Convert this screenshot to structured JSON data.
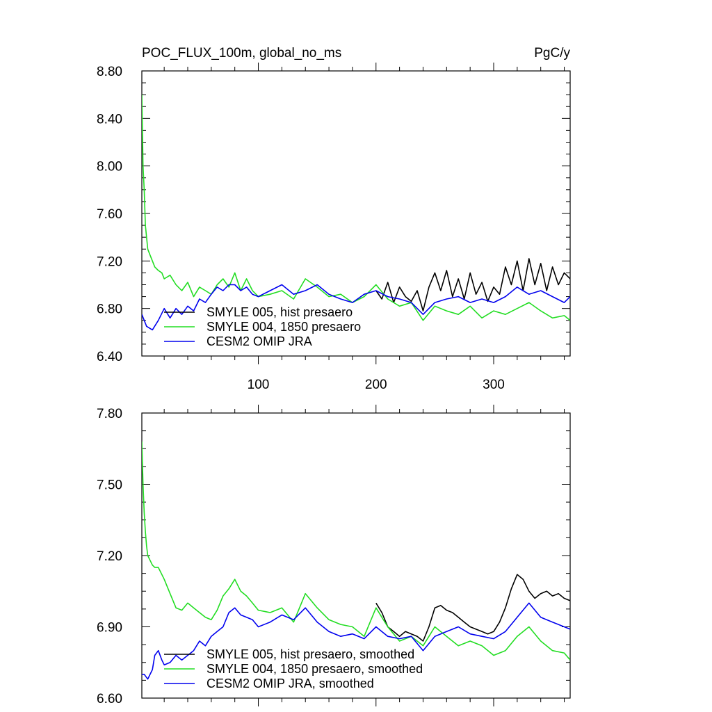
{
  "colors": {
    "black": "#000000",
    "green": "#22dd22",
    "blue": "#0000ee"
  },
  "chart_data": [
    {
      "type": "line",
      "title": "POC_FLUX_100m, global_no_ms",
      "units": "PgC/y",
      "xlim": [
        1,
        365
      ],
      "ylim": [
        6.4,
        8.8
      ],
      "x_ticks": [
        100,
        200,
        300
      ],
      "x_tick_labels": [
        "100",
        "200",
        "300"
      ],
      "y_ticks": [
        6.4,
        6.8,
        7.2,
        7.6,
        8.0,
        8.4,
        8.8
      ],
      "y_tick_labels": [
        "6.40",
        "6.80",
        "7.20",
        "7.60",
        "8.00",
        "8.40",
        "8.80"
      ],
      "legend": {
        "placement": "bottom-left"
      },
      "series": [
        {
          "name": "SMYLE 005, hist presaero",
          "color": "#000000",
          "x": [
            200,
            205,
            210,
            215,
            220,
            225,
            230,
            235,
            240,
            245,
            250,
            255,
            260,
            265,
            270,
            275,
            280,
            285,
            290,
            295,
            300,
            305,
            310,
            315,
            320,
            325,
            330,
            335,
            340,
            345,
            350,
            355,
            360,
            365
          ],
          "values": [
            6.95,
            6.88,
            7.02,
            6.85,
            6.98,
            6.9,
            6.86,
            6.95,
            6.78,
            6.98,
            7.1,
            6.95,
            7.12,
            6.9,
            7.05,
            6.88,
            7.1,
            6.92,
            7.02,
            6.86,
            6.98,
            6.92,
            7.15,
            7.0,
            7.2,
            6.95,
            7.22,
            7.0,
            7.18,
            6.95,
            7.15,
            7.0,
            7.1,
            7.05
          ]
        },
        {
          "name": "SMYLE 004, 1850 presaero",
          "color": "#22dd22",
          "x": [
            1,
            2,
            3,
            4,
            5,
            6,
            8,
            10,
            12,
            15,
            18,
            20,
            25,
            30,
            35,
            40,
            45,
            50,
            55,
            60,
            65,
            70,
            75,
            80,
            85,
            90,
            95,
            100,
            110,
            120,
            130,
            140,
            150,
            160,
            170,
            180,
            190,
            200,
            210,
            220,
            230,
            240,
            250,
            260,
            270,
            280,
            290,
            300,
            310,
            320,
            330,
            340,
            350,
            360,
            365
          ],
          "values": [
            8.6,
            8.0,
            7.8,
            7.5,
            7.4,
            7.3,
            7.25,
            7.2,
            7.15,
            7.12,
            7.1,
            7.05,
            7.08,
            7.0,
            6.95,
            7.02,
            6.9,
            6.98,
            6.95,
            6.92,
            7.0,
            7.05,
            6.98,
            7.1,
            6.95,
            7.05,
            6.95,
            6.9,
            6.92,
            6.95,
            6.88,
            7.05,
            6.98,
            6.9,
            6.92,
            6.85,
            6.9,
            7.0,
            6.88,
            6.82,
            6.85,
            6.7,
            6.82,
            6.78,
            6.75,
            6.82,
            6.72,
            6.78,
            6.75,
            6.8,
            6.85,
            6.78,
            6.72,
            6.74,
            6.7
          ]
        },
        {
          "name": "CESM2 OMIP JRA",
          "color": "#0000ee",
          "x": [
            1,
            5,
            10,
            15,
            20,
            25,
            30,
            35,
            40,
            45,
            50,
            55,
            60,
            65,
            70,
            75,
            80,
            85,
            90,
            95,
            100,
            110,
            120,
            130,
            140,
            150,
            160,
            170,
            180,
            190,
            200,
            210,
            220,
            230,
            240,
            250,
            260,
            270,
            280,
            290,
            300,
            310,
            320,
            330,
            340,
            350,
            360,
            365
          ],
          "values": [
            6.75,
            6.65,
            6.62,
            6.7,
            6.8,
            6.72,
            6.8,
            6.75,
            6.82,
            6.78,
            6.88,
            6.85,
            6.92,
            6.98,
            6.95,
            7.0,
            7.0,
            6.95,
            6.98,
            6.92,
            6.9,
            6.95,
            7.0,
            6.92,
            6.95,
            7.0,
            6.92,
            6.88,
            6.85,
            6.92,
            6.95,
            6.9,
            6.88,
            6.85,
            6.75,
            6.85,
            6.88,
            6.9,
            6.85,
            6.88,
            6.85,
            6.9,
            6.98,
            6.92,
            6.95,
            6.9,
            6.85,
            6.9
          ]
        }
      ]
    },
    {
      "type": "line",
      "xlim": [
        1,
        365
      ],
      "ylim": [
        6.6,
        7.8
      ],
      "x_ticks": [
        100,
        200,
        300
      ],
      "x_tick_labels": [],
      "y_ticks": [
        6.6,
        6.9,
        7.2,
        7.5,
        7.8
      ],
      "y_tick_labels": [
        "6.60",
        "6.90",
        "7.20",
        "7.50",
        "7.80"
      ],
      "legend": {
        "placement": "bottom-left"
      },
      "series": [
        {
          "name": "SMYLE 005, hist presaero, smoothed",
          "color": "#000000",
          "x": [
            200,
            205,
            210,
            215,
            220,
            225,
            230,
            235,
            240,
            245,
            250,
            255,
            260,
            265,
            270,
            275,
            280,
            285,
            290,
            295,
            300,
            305,
            310,
            315,
            320,
            325,
            330,
            335,
            340,
            345,
            350,
            355,
            360,
            365
          ],
          "values": [
            7.0,
            6.96,
            6.9,
            6.88,
            6.86,
            6.88,
            6.87,
            6.86,
            6.84,
            6.9,
            6.98,
            6.99,
            6.97,
            6.96,
            6.94,
            6.92,
            6.9,
            6.89,
            6.88,
            6.87,
            6.88,
            6.92,
            6.98,
            7.06,
            7.12,
            7.1,
            7.05,
            7.02,
            7.04,
            7.05,
            7.03,
            7.04,
            7.02,
            7.01
          ]
        },
        {
          "name": "SMYLE 004, 1850 presaero, smoothed",
          "color": "#22dd22",
          "x": [
            1,
            2,
            3,
            4,
            5,
            6,
            8,
            10,
            12,
            15,
            18,
            20,
            25,
            30,
            35,
            40,
            45,
            50,
            55,
            60,
            65,
            70,
            75,
            80,
            85,
            90,
            95,
            100,
            110,
            120,
            130,
            140,
            150,
            160,
            170,
            180,
            190,
            200,
            210,
            220,
            230,
            240,
            250,
            260,
            270,
            280,
            290,
            300,
            310,
            320,
            330,
            340,
            350,
            360,
            365
          ],
          "values": [
            7.68,
            7.5,
            7.38,
            7.3,
            7.24,
            7.2,
            7.18,
            7.16,
            7.15,
            7.15,
            7.12,
            7.1,
            7.04,
            6.98,
            6.97,
            7.0,
            6.98,
            6.96,
            6.94,
            6.93,
            6.97,
            7.03,
            7.06,
            7.1,
            7.05,
            7.03,
            7.0,
            6.97,
            6.96,
            6.98,
            6.92,
            7.04,
            6.98,
            6.93,
            6.91,
            6.9,
            6.86,
            6.98,
            6.9,
            6.84,
            6.86,
            6.82,
            6.9,
            6.86,
            6.82,
            6.84,
            6.82,
            6.78,
            6.8,
            6.86,
            6.9,
            6.84,
            6.8,
            6.79,
            6.76
          ]
        },
        {
          "name": "CESM2 OMIP JRA, smoothed",
          "color": "#0000ee",
          "x": [
            1,
            3,
            6,
            10,
            12,
            15,
            18,
            20,
            25,
            30,
            35,
            40,
            45,
            50,
            55,
            60,
            65,
            70,
            75,
            80,
            85,
            90,
            95,
            100,
            110,
            120,
            130,
            140,
            150,
            160,
            170,
            180,
            190,
            200,
            210,
            220,
            230,
            240,
            250,
            260,
            270,
            280,
            290,
            300,
            310,
            320,
            330,
            340,
            350,
            360,
            365
          ],
          "values": [
            6.7,
            6.7,
            6.68,
            6.72,
            6.78,
            6.8,
            6.76,
            6.74,
            6.75,
            6.78,
            6.76,
            6.78,
            6.8,
            6.84,
            6.82,
            6.86,
            6.88,
            6.9,
            6.96,
            6.98,
            6.95,
            6.94,
            6.93,
            6.9,
            6.92,
            6.95,
            6.93,
            6.98,
            6.92,
            6.88,
            6.86,
            6.87,
            6.85,
            6.9,
            6.86,
            6.85,
            6.86,
            6.8,
            6.86,
            6.88,
            6.9,
            6.87,
            6.86,
            6.85,
            6.88,
            6.94,
            7.0,
            6.94,
            6.92,
            6.9,
            6.89
          ]
        }
      ]
    }
  ]
}
